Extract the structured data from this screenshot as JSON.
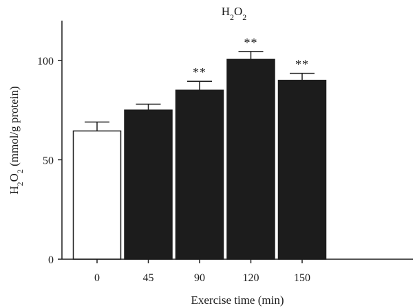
{
  "chart_data": {
    "type": "bar",
    "title": "H2O2",
    "title_parts": {
      "base": "H",
      "sub1": "2",
      "mid": "O",
      "sub2": "2"
    },
    "xlabel": "Exercise time (min)",
    "ylabel_parts": {
      "base": "H",
      "sub1": "2",
      "mid": "O",
      "sub2": "2",
      "rest": " (mmol/g protein)"
    },
    "categories": [
      "0",
      "45",
      "90",
      "120",
      "150"
    ],
    "values": [
      64.5,
      75,
      85,
      100.5,
      90
    ],
    "errors": [
      4.5,
      3,
      4.5,
      4,
      3.5
    ],
    "significance": [
      "",
      "",
      "**",
      "**",
      "**"
    ],
    "bar_fill": [
      "#ffffff",
      "#1c1c1c",
      "#1c1c1c",
      "#1c1c1c",
      "#1c1c1c"
    ],
    "bar_stroke": "#1c1c1c",
    "ylim": [
      0,
      120
    ],
    "yticks": [
      0,
      50,
      100
    ],
    "grid": false,
    "legend": "none"
  }
}
